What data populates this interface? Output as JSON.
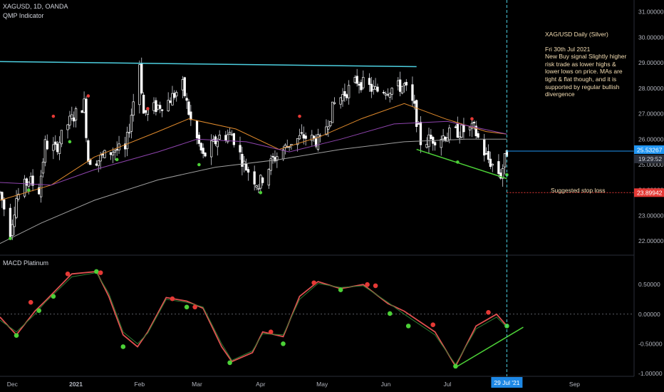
{
  "header": {
    "symbol": "XAGUSD, 1D, OANDA",
    "indicator": "QMP Indicator",
    "macd_label": "MACD Platinum"
  },
  "annotation": {
    "title": "XAG/USD Daily (Silver)",
    "date": "Fri 30th Jul 2021",
    "body": "New Buy signal Slightly higher risk trade as lower highs & lower lows on price. MAs are tight & flat though, and it is supported by regular bullish divergence",
    "stop_label": "Suggested stop loss"
  },
  "colors": {
    "up": "#ffffff",
    "down": "#ffffff",
    "resistance": "#4dd0e1",
    "trend": "#4cd137",
    "ma_fast": "#e08a2c",
    "ma_mid": "#8e44ad",
    "ma_slow": "#9e9e9e",
    "macd": "#e05050",
    "signal": "#2e7d32",
    "buy_dot": "#4cd137",
    "sell_dot": "#e53935",
    "price_tag": "#2196f3",
    "stop": "#e53935",
    "vline": "#4dd0e1"
  },
  "chart_data": [
    {
      "type": "candlestick",
      "title": "XAGUSD, 1D, OANDA",
      "ylim": [
        21.5,
        31.3
      ],
      "y_ticks": [
        "31.00000",
        "30.00000",
        "29.00000",
        "28.00000",
        "27.00000",
        "26.00000",
        "25.00000",
        "24.00000",
        "23.00000",
        "22.00000"
      ],
      "x_labels": [
        "Dec",
        "2021",
        "Feb",
        "Mar",
        "Apr",
        "May",
        "Jun",
        "Jul",
        "Aug",
        "Sep"
      ],
      "x_range": [
        "2020-11-25",
        "2021-09-30"
      ],
      "current_price": "25.53267",
      "countdown": "19:29:52",
      "stop_loss": "23.89942",
      "selected_date": "29 Jul '21",
      "price_path": [
        [
          "2020-11-25",
          23.9
        ],
        [
          "2020-11-30",
          22.4
        ],
        [
          "2020-12-03",
          23.7
        ],
        [
          "2020-12-09",
          24.4
        ],
        [
          "2020-12-14",
          24.0
        ],
        [
          "2020-12-17",
          25.8
        ],
        [
          "2020-12-22",
          25.6
        ],
        [
          "2020-12-28",
          26.6
        ],
        [
          "2021-01-05",
          27.4
        ],
        [
          "2021-01-07",
          25.2
        ],
        [
          "2021-01-12",
          25.2
        ],
        [
          "2021-01-20",
          25.6
        ],
        [
          "2021-01-25",
          25.5
        ],
        [
          "2021-02-01",
          29.0
        ],
        [
          "2021-02-03",
          27.0
        ],
        [
          "2021-02-10",
          27.3
        ],
        [
          "2021-02-15",
          27.5
        ],
        [
          "2021-02-22",
          28.1
        ],
        [
          "2021-02-26",
          26.7
        ],
        [
          "2021-03-04",
          25.3
        ],
        [
          "2021-03-12",
          26.1
        ],
        [
          "2021-03-18",
          26.2
        ],
        [
          "2021-03-24",
          25.0
        ],
        [
          "2021-03-31",
          24.2
        ],
        [
          "2021-04-07",
          25.2
        ],
        [
          "2021-04-16",
          25.9
        ],
        [
          "2021-04-22",
          26.1
        ],
        [
          "2021-04-30",
          25.9
        ],
        [
          "2021-05-07",
          27.4
        ],
        [
          "2021-05-18",
          28.3
        ],
        [
          "2021-05-27",
          27.9
        ],
        [
          "2021-06-04",
          28.0
        ],
        [
          "2021-06-10",
          28.1
        ],
        [
          "2021-06-15",
          27.2
        ],
        [
          "2021-06-18",
          25.9
        ],
        [
          "2021-06-28",
          26.1
        ],
        [
          "2021-07-06",
          26.3
        ],
        [
          "2021-07-14",
          26.4
        ],
        [
          "2021-07-20",
          25.3
        ],
        [
          "2021-07-27",
          24.6
        ],
        [
          "2021-07-30",
          25.5
        ]
      ],
      "moving_averages": [
        {
          "values": [
            [
              "2020-11-25",
              23.6
            ],
            [
              "2020-12-20",
              24.2
            ],
            [
              "2021-01-10",
              25.3
            ],
            [
              "2021-02-10",
              26.3
            ],
            [
              "2021-02-25",
              26.8
            ],
            [
              "2021-03-20",
              26.4
            ],
            [
              "2021-04-10",
              25.6
            ],
            [
              "2021-04-30",
              26.1
            ],
            [
              "2021-05-20",
              26.8
            ],
            [
              "2021-06-10",
              27.4
            ],
            [
              "2021-06-30",
              26.8
            ],
            [
              "2021-07-20",
              26.3
            ],
            [
              "2021-07-30",
              26.2
            ]
          ]
        },
        {
          "values": [
            [
              "2020-11-25",
              24.3
            ],
            [
              "2020-12-20",
              24.2
            ],
            [
              "2021-01-10",
              24.8
            ],
            [
              "2021-02-10",
              25.5
            ],
            [
              "2021-03-01",
              26.0
            ],
            [
              "2021-03-25",
              25.9
            ],
            [
              "2021-04-15",
              25.5
            ],
            [
              "2021-05-10",
              26.0
            ],
            [
              "2021-06-05",
              26.6
            ],
            [
              "2021-07-01",
              26.7
            ],
            [
              "2021-07-30",
              26.2
            ]
          ]
        },
        {
          "values": [
            [
              "2020-11-25",
              21.9
            ],
            [
              "2020-12-15",
              22.7
            ],
            [
              "2021-01-10",
              23.6
            ],
            [
              "2021-02-10",
              24.4
            ],
            [
              "2021-03-10",
              24.9
            ],
            [
              "2021-04-10",
              25.2
            ],
            [
              "2021-05-10",
              25.6
            ],
            [
              "2021-06-10",
              25.9
            ],
            [
              "2021-07-10",
              26.0
            ],
            [
              "2021-07-30",
              26.0
            ]
          ]
        }
      ],
      "resistance": [
        [
          "2020-11-25",
          29.05
        ],
        [
          "2021-06-16",
          28.85
        ]
      ],
      "support_trend": [
        [
          "2021-06-16",
          25.6
        ],
        [
          "2021-07-30",
          24.45
        ]
      ],
      "buy_signals": [
        [
          "2020-11-30",
          22.1
        ],
        [
          "2020-12-09",
          24.0
        ],
        [
          "2020-12-29",
          25.9
        ],
        [
          "2021-01-21",
          25.2
        ],
        [
          "2021-03-02",
          25.0
        ],
        [
          "2021-04-01",
          23.9
        ],
        [
          "2021-07-06",
          25.1
        ],
        [
          "2021-07-30",
          24.6
        ]
      ],
      "sell_signals": [
        [
          "2020-12-21",
          26.9
        ],
        [
          "2021-01-07",
          27.7
        ],
        [
          "2021-02-05",
          27.2
        ],
        [
          "2021-04-20",
          26.9
        ],
        [
          "2021-07-13",
          26.8
        ]
      ]
    },
    {
      "type": "line",
      "title": "MACD Platinum",
      "ylim": [
        -1.05,
        0.9
      ],
      "y_ticks": [
        "0.50000",
        "0.00000",
        "-0.50000",
        "-1.00000"
      ],
      "zero_line": 0,
      "series": [
        {
          "values": [
            [
              "2020-11-25",
              -0.05
            ],
            [
              "2020-12-03",
              -0.35
            ],
            [
              "2020-12-12",
              0.05
            ],
            [
              "2020-12-17",
              0.22
            ],
            [
              "2020-12-30",
              0.68
            ],
            [
              "2021-01-11",
              0.72
            ],
            [
              "2021-01-17",
              0.3
            ],
            [
              "2021-01-24",
              -0.35
            ],
            [
              "2021-01-31",
              -0.55
            ],
            [
              "2021-02-05",
              -0.3
            ],
            [
              "2021-02-14",
              0.28
            ],
            [
              "2021-02-24",
              0.22
            ],
            [
              "2021-03-04",
              0.1
            ],
            [
              "2021-03-13",
              -0.55
            ],
            [
              "2021-03-18",
              -0.8
            ],
            [
              "2021-03-28",
              -0.65
            ],
            [
              "2021-04-02",
              -0.3
            ],
            [
              "2021-04-12",
              -0.38
            ],
            [
              "2021-04-20",
              0.3
            ],
            [
              "2021-04-29",
              0.55
            ],
            [
              "2021-05-10",
              0.43
            ],
            [
              "2021-05-21",
              0.5
            ],
            [
              "2021-06-02",
              0.18
            ],
            [
              "2021-06-10",
              0.05
            ],
            [
              "2021-06-25",
              -0.3
            ],
            [
              "2021-07-05",
              -0.88
            ],
            [
              "2021-07-15",
              -0.2
            ],
            [
              "2021-07-25",
              0.0
            ],
            [
              "2021-07-30",
              -0.2
            ]
          ]
        },
        {
          "values": [
            [
              "2020-11-25",
              -0.1
            ],
            [
              "2020-12-03",
              -0.3
            ],
            [
              "2020-12-12",
              0.0
            ],
            [
              "2020-12-17",
              0.2
            ],
            [
              "2020-12-30",
              0.63
            ],
            [
              "2021-01-11",
              0.7
            ],
            [
              "2021-01-17",
              0.35
            ],
            [
              "2021-01-24",
              -0.3
            ],
            [
              "2021-01-31",
              -0.5
            ],
            [
              "2021-02-05",
              -0.32
            ],
            [
              "2021-02-14",
              0.25
            ],
            [
              "2021-02-24",
              0.2
            ],
            [
              "2021-03-04",
              0.12
            ],
            [
              "2021-03-13",
              -0.5
            ],
            [
              "2021-03-18",
              -0.78
            ],
            [
              "2021-03-28",
              -0.62
            ],
            [
              "2021-04-02",
              -0.33
            ],
            [
              "2021-04-12",
              -0.35
            ],
            [
              "2021-04-20",
              0.25
            ],
            [
              "2021-04-29",
              0.52
            ],
            [
              "2021-05-10",
              0.45
            ],
            [
              "2021-05-21",
              0.48
            ],
            [
              "2021-06-02",
              0.2
            ],
            [
              "2021-06-10",
              0.0
            ],
            [
              "2021-06-25",
              -0.35
            ],
            [
              "2021-07-05",
              -0.85
            ],
            [
              "2021-07-15",
              -0.25
            ],
            [
              "2021-07-25",
              -0.05
            ],
            [
              "2021-07-30",
              -0.22
            ]
          ]
        }
      ],
      "buy_signals": [
        [
          "2020-12-03",
          -0.36
        ],
        [
          "2020-12-14",
          0.06
        ],
        [
          "2020-12-21",
          0.3
        ],
        [
          "2021-01-11",
          0.72
        ],
        [
          "2021-01-24",
          -0.55
        ],
        [
          "2021-02-24",
          0.12
        ],
        [
          "2021-03-17",
          -0.82
        ],
        [
          "2021-04-12",
          -0.5
        ],
        [
          "2021-05-10",
          0.41
        ],
        [
          "2021-06-03",
          0.01
        ],
        [
          "2021-06-12",
          -0.2
        ],
        [
          "2021-07-05",
          -0.88
        ],
        [
          "2021-07-30",
          -0.2
        ]
      ],
      "sell_signals": [
        [
          "2020-12-10",
          0.2
        ],
        [
          "2020-12-28",
          0.68
        ],
        [
          "2021-01-13",
          0.7
        ],
        [
          "2021-02-17",
          0.26
        ],
        [
          "2021-02-28",
          0.12
        ],
        [
          "2021-04-06",
          -0.3
        ],
        [
          "2021-04-27",
          0.53
        ],
        [
          "2021-05-23",
          0.5
        ],
        [
          "2021-05-27",
          0.48
        ],
        [
          "2021-06-24",
          -0.18
        ],
        [
          "2021-07-21",
          0.03
        ]
      ],
      "divergence_line": [
        [
          "2021-07-05",
          -0.9
        ],
        [
          "2021-08-07",
          -0.22
        ]
      ]
    }
  ]
}
